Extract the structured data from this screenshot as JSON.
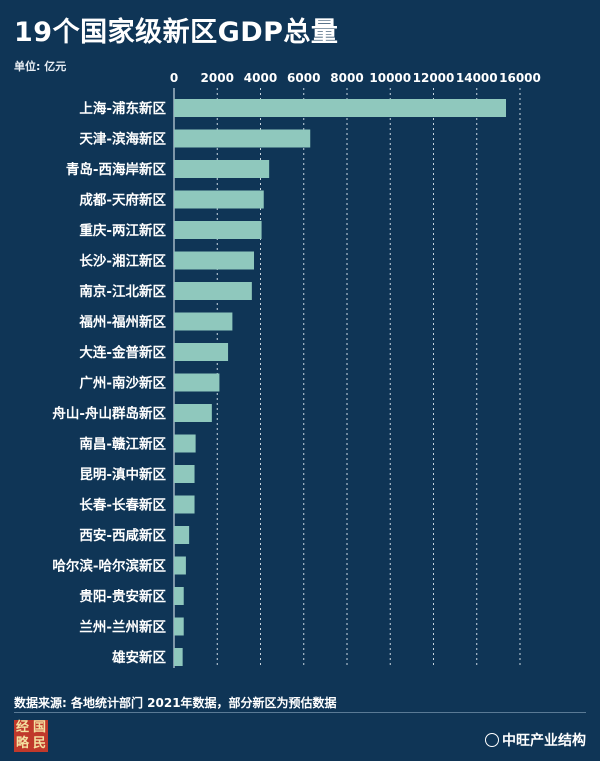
{
  "header": {
    "title": "19个国家级新区GDP总量",
    "unit": "单位: 亿元"
  },
  "footer": {
    "source": "数据来源: 各地统计部门 2021年数据，部分新区为预估数据",
    "logo_chars": [
      "经",
      "国",
      "略",
      "民"
    ],
    "credit": "中旺产业结构"
  },
  "colors": {
    "background": "#0f3556",
    "bar": "#8fc8bd",
    "grid": "#c9d6e0",
    "text": "#ffffff"
  },
  "chart_data": {
    "type": "bar",
    "orientation": "horizontal",
    "title": "19个国家级新区GDP总量",
    "xlabel": "",
    "ylabel": "",
    "unit": "亿元",
    "xlim": [
      0,
      16000
    ],
    "x_ticks": [
      0,
      2000,
      4000,
      6000,
      8000,
      10000,
      12000,
      14000,
      16000
    ],
    "grid": true,
    "categories": [
      "上海-浦东新区",
      "天津-滨海新区",
      "青岛-西海岸新区",
      "成都-天府新区",
      "重庆-两江新区",
      "长沙-湘江新区",
      "南京-江北新区",
      "福州-福州新区",
      "大连-金普新区",
      "广州-南沙新区",
      "舟山-舟山群岛新区",
      "南昌-赣江新区",
      "昆明-滇中新区",
      "长春-长春新区",
      "西安-西咸新区",
      "哈尔滨-哈尔滨新区",
      "贵阳-贵安新区",
      "兰州-兰州新区",
      "雄安新区"
    ],
    "values": [
      15353,
      6300,
      4400,
      4150,
      4050,
      3700,
      3600,
      2700,
      2500,
      2100,
      1750,
      1000,
      950,
      950,
      700,
      550,
      450,
      450,
      400
    ]
  }
}
